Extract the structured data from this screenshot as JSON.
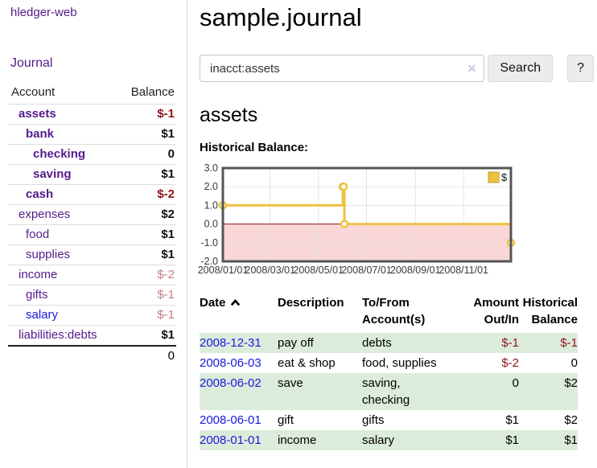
{
  "app": {
    "brand": "hledger-web"
  },
  "sidebar": {
    "journal_link": "Journal",
    "accounts_table": {
      "col_account": "Account",
      "col_balance": "Balance",
      "rows": [
        {
          "name": "assets",
          "depth": 1,
          "bold": true,
          "balance": "$-1",
          "balance_tone": "negative"
        },
        {
          "name": "bank",
          "depth": 2,
          "bold": true,
          "balance": "$1",
          "balance_tone": "normal"
        },
        {
          "name": "checking",
          "depth": 3,
          "bold": true,
          "balance": "0",
          "balance_tone": "normal"
        },
        {
          "name": "saving",
          "depth": 3,
          "bold": true,
          "balance": "$1",
          "balance_tone": "normal"
        },
        {
          "name": "cash",
          "depth": 2,
          "bold": true,
          "balance": "$-2",
          "balance_tone": "negative"
        },
        {
          "name": "expenses",
          "depth": 1,
          "bold": false,
          "balance": "$2",
          "balance_tone": "normal"
        },
        {
          "name": "food",
          "depth": 2,
          "bold": false,
          "balance": "$1",
          "balance_tone": "normal"
        },
        {
          "name": "supplies",
          "depth": 2,
          "bold": false,
          "balance": "$1",
          "balance_tone": "normal"
        },
        {
          "name": "income",
          "depth": 1,
          "bold": false,
          "balance": "$-2",
          "balance_tone": "negative-dim"
        },
        {
          "name": "gifts",
          "depth": 2,
          "bold": false,
          "balance": "$-1",
          "balance_tone": "negative-dim"
        },
        {
          "name": "salary",
          "depth": 2,
          "bold": false,
          "balance": "$-1",
          "balance_tone": "negative-dim",
          "link_tone": "unvisited"
        },
        {
          "name": "liabilities:debts",
          "depth": 1,
          "bold": false,
          "balance": "$1",
          "balance_tone": "normal"
        }
      ],
      "total": "0"
    }
  },
  "main": {
    "title": "sample.journal",
    "search": {
      "value": "inacct:assets",
      "clear_icon": "✕",
      "search_button": "Search",
      "help_button": "?"
    },
    "account_heading": "assets",
    "chart_heading": "Historical Balance:"
  },
  "chart_data": {
    "type": "line",
    "style": "step",
    "title": "Historical Balance",
    "legend": [
      {
        "label": "$",
        "color": "#edc240"
      }
    ],
    "legend_position": "top-right",
    "series": [
      {
        "name": "$",
        "points": [
          {
            "x": "2008/01/01",
            "y": 1
          },
          {
            "x": "2008/06/01",
            "y": 2
          },
          {
            "x": "2008/06/02",
            "y": 2
          },
          {
            "x": "2008/06/03",
            "y": 0
          },
          {
            "x": "2008/12/31",
            "y": -1
          }
        ]
      }
    ],
    "ylim": [
      -2,
      3
    ],
    "y_tick_labels": [
      "3.0",
      "2.0",
      "1.0",
      "0.0",
      "-1.0",
      "-2.0"
    ],
    "x_ticks": [
      "2008/01/01",
      "2008/03/01",
      "2008/05/01",
      "2008/07/01",
      "2008/09/01",
      "2008/11/01"
    ],
    "xlim": [
      "2008/01/01",
      "2008/12/31"
    ],
    "grid": true,
    "colors": {
      "line": "#edc240",
      "marker_fill": "#ffffff",
      "negative_region": "#f9d7d7",
      "zero_line": "#8b1111",
      "grid": "#e5e5e5",
      "border": "#545454",
      "tick_text": "#3a3a3a"
    }
  },
  "register": {
    "columns": {
      "date": "Date",
      "description": "Description",
      "tofrom": "To/From Account(s)",
      "amount": "Amount Out/In",
      "balance": "Historical Balance"
    },
    "sort_icon": "chevron-up",
    "rows": [
      {
        "date": "2008-12-31",
        "description": "pay off",
        "accounts": "debts",
        "amount": "$-1",
        "balance": "$-1"
      },
      {
        "date": "2008-06-03",
        "description": "eat & shop",
        "accounts": "food, supplies",
        "amount": "$-2",
        "balance": "0"
      },
      {
        "date": "2008-06-02",
        "description": "save",
        "accounts": "saving, checking",
        "amount": "0",
        "balance": "$2"
      },
      {
        "date": "2008-06-01",
        "description": "gift",
        "accounts": "gifts",
        "amount": "$1",
        "balance": "$2"
      },
      {
        "date": "2008-01-01",
        "description": "income",
        "accounts": "salary",
        "amount": "$1",
        "balance": "$1"
      }
    ]
  },
  "colors": {
    "link_purple": "#551a8b",
    "link_blue": "#1818dd",
    "negative": "#8c1419",
    "negative_dim": "#c57d7d",
    "row_green": "#dcecdb",
    "divider": "#dddddd",
    "button_bg": "#ececec"
  }
}
